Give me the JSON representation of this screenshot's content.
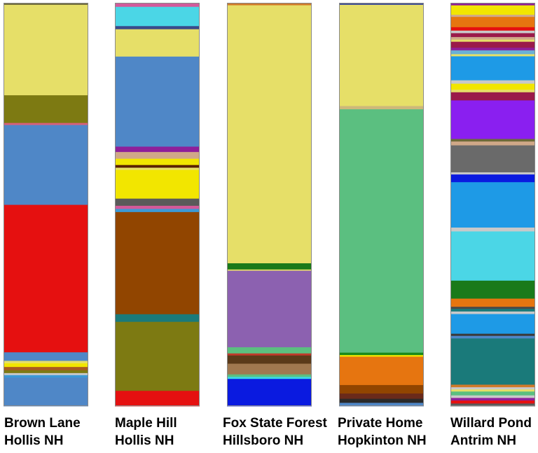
{
  "chart_data": {
    "type": "bar",
    "stacked": true,
    "orientation": "vertical",
    "value_unit": "percent of column (estimated, top to bottom)",
    "title": "",
    "xlabel": "",
    "ylabel": "",
    "grid": false,
    "legend": "none",
    "categories": [
      {
        "line1": "Brown Lane",
        "line2": "Hollis NH"
      },
      {
        "line1": "Maple Hill",
        "line2": "Hollis NH"
      },
      {
        "line1": "Fox State Forest",
        "line2": "Hillsboro NH"
      },
      {
        "line1": "Private Home",
        "line2": "Hopkinton NH"
      },
      {
        "line1": "Willard Pond",
        "line2": "Antrim NH"
      }
    ],
    "columns": [
      [
        {
          "color": "#6e6a3a",
          "value": 0.5
        },
        {
          "color": "#e6df68",
          "value": 22.2
        },
        {
          "color": "#7d7a12",
          "value": 6.8
        },
        {
          "color": "#d7607a",
          "value": 0.5
        },
        {
          "color": "#4f87c7",
          "value": 19.6
        },
        {
          "color": "#e51010",
          "value": 36.2
        },
        {
          "color": "#4f87c7",
          "value": 2.1
        },
        {
          "color": "#e6df68",
          "value": 0.6
        },
        {
          "color": "#f2e600",
          "value": 0.9
        },
        {
          "color": "#a85a22",
          "value": 0.8
        },
        {
          "color": "#7d7a12",
          "value": 0.7
        },
        {
          "color": "#c9c9c9",
          "value": 0.5
        },
        {
          "color": "#3c9ad6",
          "value": 0.6
        },
        {
          "color": "#4f87c7",
          "value": 7.0
        }
      ],
      [
        {
          "color": "#d35a9a",
          "value": 0.9
        },
        {
          "color": "#4bd6e6",
          "value": 4.3
        },
        {
          "color": "#3a4a8a",
          "value": 0.7
        },
        {
          "color": "#e6df68",
          "value": 6.1
        },
        {
          "color": "#4f87c7",
          "value": 20.1
        },
        {
          "color": "#8e1f9a",
          "value": 1.2
        },
        {
          "color": "#d0a888",
          "value": 1.5
        },
        {
          "color": "#f2e600",
          "value": 1.4
        },
        {
          "color": "#5a2000",
          "value": 0.6
        },
        {
          "color": "#e6df68",
          "value": 0.5
        },
        {
          "color": "#f2e600",
          "value": 6.4
        },
        {
          "color": "#5a5a5a",
          "value": 1.6
        },
        {
          "color": "#d35a9a",
          "value": 0.7
        },
        {
          "color": "#3c9ad6",
          "value": 0.7
        },
        {
          "color": "#914500",
          "value": 22.8
        },
        {
          "color": "#1a7a7a",
          "value": 1.7
        },
        {
          "color": "#7d7a12",
          "value": 15.4
        },
        {
          "color": "#e51010",
          "value": 3.4
        }
      ],
      [
        {
          "color": "#d07a2a",
          "value": 0.6
        },
        {
          "color": "#e6df68",
          "value": 62.7
        },
        {
          "color": "#1a7a1a",
          "value": 1.5
        },
        {
          "color": "#e6df68",
          "value": 0.3
        },
        {
          "color": "#8c61b0",
          "value": 18.6
        },
        {
          "color": "#5bbf80",
          "value": 1.5
        },
        {
          "color": "#c0392b",
          "value": 0.5
        },
        {
          "color": "#5a3a1a",
          "value": 2.0
        },
        {
          "color": "#a07850",
          "value": 2.6
        },
        {
          "color": "#5bbf80",
          "value": 0.6
        },
        {
          "color": "#3cd6e6",
          "value": 0.5
        },
        {
          "color": "#0a1ae0",
          "value": 6.6
        }
      ],
      [
        {
          "color": "#3a4a9a",
          "value": 0.5
        },
        {
          "color": "#e6df68",
          "value": 25.0
        },
        {
          "color": "#cdb87a",
          "value": 0.8
        },
        {
          "color": "#5bbf80",
          "value": 60.1
        },
        {
          "color": "#1a8a1a",
          "value": 0.6
        },
        {
          "color": "#f2e600",
          "value": 0.4
        },
        {
          "color": "#e67510",
          "value": 7.0
        },
        {
          "color": "#914500",
          "value": 2.1
        },
        {
          "color": "#6a2a1a",
          "value": 1.3
        },
        {
          "color": "#2a2a2a",
          "value": 1.0
        },
        {
          "color": "#4f87c7",
          "value": 0.8
        }
      ],
      [
        {
          "color": "#8e1f9a",
          "value": 0.6
        },
        {
          "color": "#f2e600",
          "value": 2.2
        },
        {
          "color": "#d0a888",
          "value": 0.5
        },
        {
          "color": "#e67510",
          "value": 2.4
        },
        {
          "color": "#e51010",
          "value": 0.8
        },
        {
          "color": "#c9c9c9",
          "value": 0.6
        },
        {
          "color": "#9a1a4a",
          "value": 0.9
        },
        {
          "color": "#d0a888",
          "value": 0.6
        },
        {
          "color": "#e6df68",
          "value": 0.5
        },
        {
          "color": "#9a1a4a",
          "value": 1.4
        },
        {
          "color": "#8e1f9a",
          "value": 0.6
        },
        {
          "color": "#6ab0d6",
          "value": 0.9
        },
        {
          "color": "#e6df68",
          "value": 0.5
        },
        {
          "color": "#1e9ae6",
          "value": 5.6
        },
        {
          "color": "#c9c9c9",
          "value": 0.8
        },
        {
          "color": "#f2e600",
          "value": 1.4
        },
        {
          "color": "#e6df68",
          "value": 0.6
        },
        {
          "color": "#9a1a4a",
          "value": 1.9
        },
        {
          "color": "#8a1ff0",
          "value": 9.0
        },
        {
          "color": "#6e6a3a",
          "value": 0.6
        },
        {
          "color": "#d0a888",
          "value": 0.9
        },
        {
          "color": "#6a6a6a",
          "value": 6.3
        },
        {
          "color": "#c9c9c9",
          "value": 0.5
        },
        {
          "color": "#0a1ae0",
          "value": 1.8
        },
        {
          "color": "#1e9ae6",
          "value": 10.6
        },
        {
          "color": "#c9c9c9",
          "value": 0.9
        },
        {
          "color": "#4bd6e6",
          "value": 11.5
        },
        {
          "color": "#1a7a1a",
          "value": 4.2
        },
        {
          "color": "#e67510",
          "value": 1.9
        },
        {
          "color": "#4a4a4a",
          "value": 0.5
        },
        {
          "color": "#1a7a7a",
          "value": 0.6
        },
        {
          "color": "#c9c9c9",
          "value": 0.6
        },
        {
          "color": "#1e9ae6",
          "value": 4.6
        },
        {
          "color": "#3a3a3a",
          "value": 0.5
        },
        {
          "color": "#4f87c7",
          "value": 0.6
        },
        {
          "color": "#1a7a7a",
          "value": 10.8
        },
        {
          "color": "#d07a2a",
          "value": 0.6
        },
        {
          "color": "#c9c9c9",
          "value": 0.5
        },
        {
          "color": "#e6df68",
          "value": 0.5
        },
        {
          "color": "#5bbf80",
          "value": 0.9
        },
        {
          "color": "#c9c9c9",
          "value": 0.6
        },
        {
          "color": "#8e1f9a",
          "value": 0.6
        },
        {
          "color": "#e51010",
          "value": 0.7
        },
        {
          "color": "#5a5a5a",
          "value": 0.6
        }
      ]
    ]
  }
}
